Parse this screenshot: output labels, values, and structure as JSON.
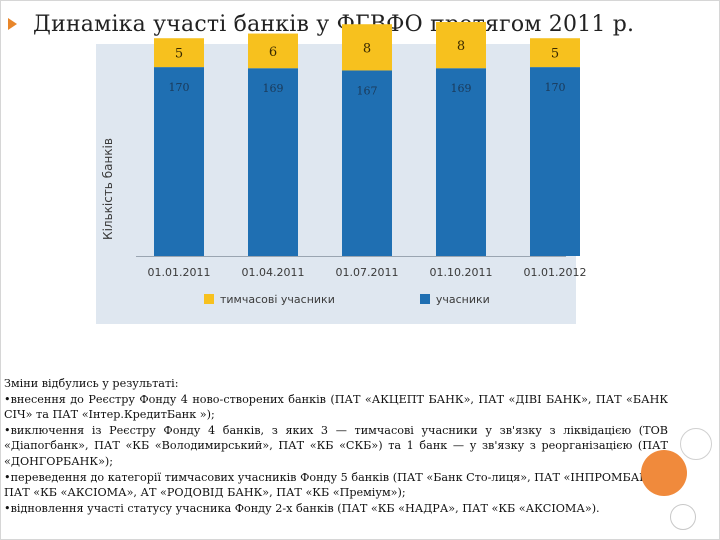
{
  "title": "Динаміка участі банків у ФГВФО протягом 2011 р.",
  "colors": {
    "temporary": "#f7c11e",
    "participants": "#1f6fb2",
    "bullet": "#e8862a",
    "panel": "#dfe7f0"
  },
  "chart_data": {
    "type": "bar",
    "stacked": true,
    "categories": [
      "01.01.2011",
      "01.04.2011",
      "01.07.2011",
      "01.10.2011",
      "01.01.2012"
    ],
    "series": [
      {
        "name": "учасники",
        "values": [
          170,
          169,
          167,
          169,
          170
        ]
      },
      {
        "name": "тимчасові учасники",
        "values": [
          5,
          6,
          8,
          8,
          5
        ]
      }
    ],
    "ylabel": "Кількість банків",
    "legend": [
      "тимчасові учасники",
      "учасники"
    ],
    "legend_position": "bottom",
    "grid": false
  },
  "notes": {
    "intro": "Зміни відбулись у результаті:",
    "items": [
      "•внесення до Реєстру Фонду 4 ново-створених банків (ПАТ «АКЦЕПТ БАНК», ПАТ «ДІВІ БАНК», ПАТ «БАНК СІЧ» та ПАТ «Інтер.КредитБанк »);",
      "•виключення із Реєстру Фонду 4 банків, з яких 3 — тимчасові учасники у зв'язку з ліквідацією (ТОВ «Діапогбанк», ПАТ «КБ «Володимирський», ПАТ «КБ «СКБ») та 1 банк — у зв'язку з реорганізацією (ПАТ «ДОНГОРБАНК»);",
      "•переведення до категорії тимчасових учасників Фонду 5 банків (ПАТ «Банк Сто-лиця», ПАТ «ІНПРОМБАНК», ПАТ «КБ «АКСІОМА», АТ «РОДОВІД БАНК», ПАТ «КБ «Преміум»);",
      "•відновлення участі статусу учасника Фонду 2-х банків (ПАТ «КБ «НАДРА», ПАТ «КБ «АКСІОМА»)."
    ]
  }
}
